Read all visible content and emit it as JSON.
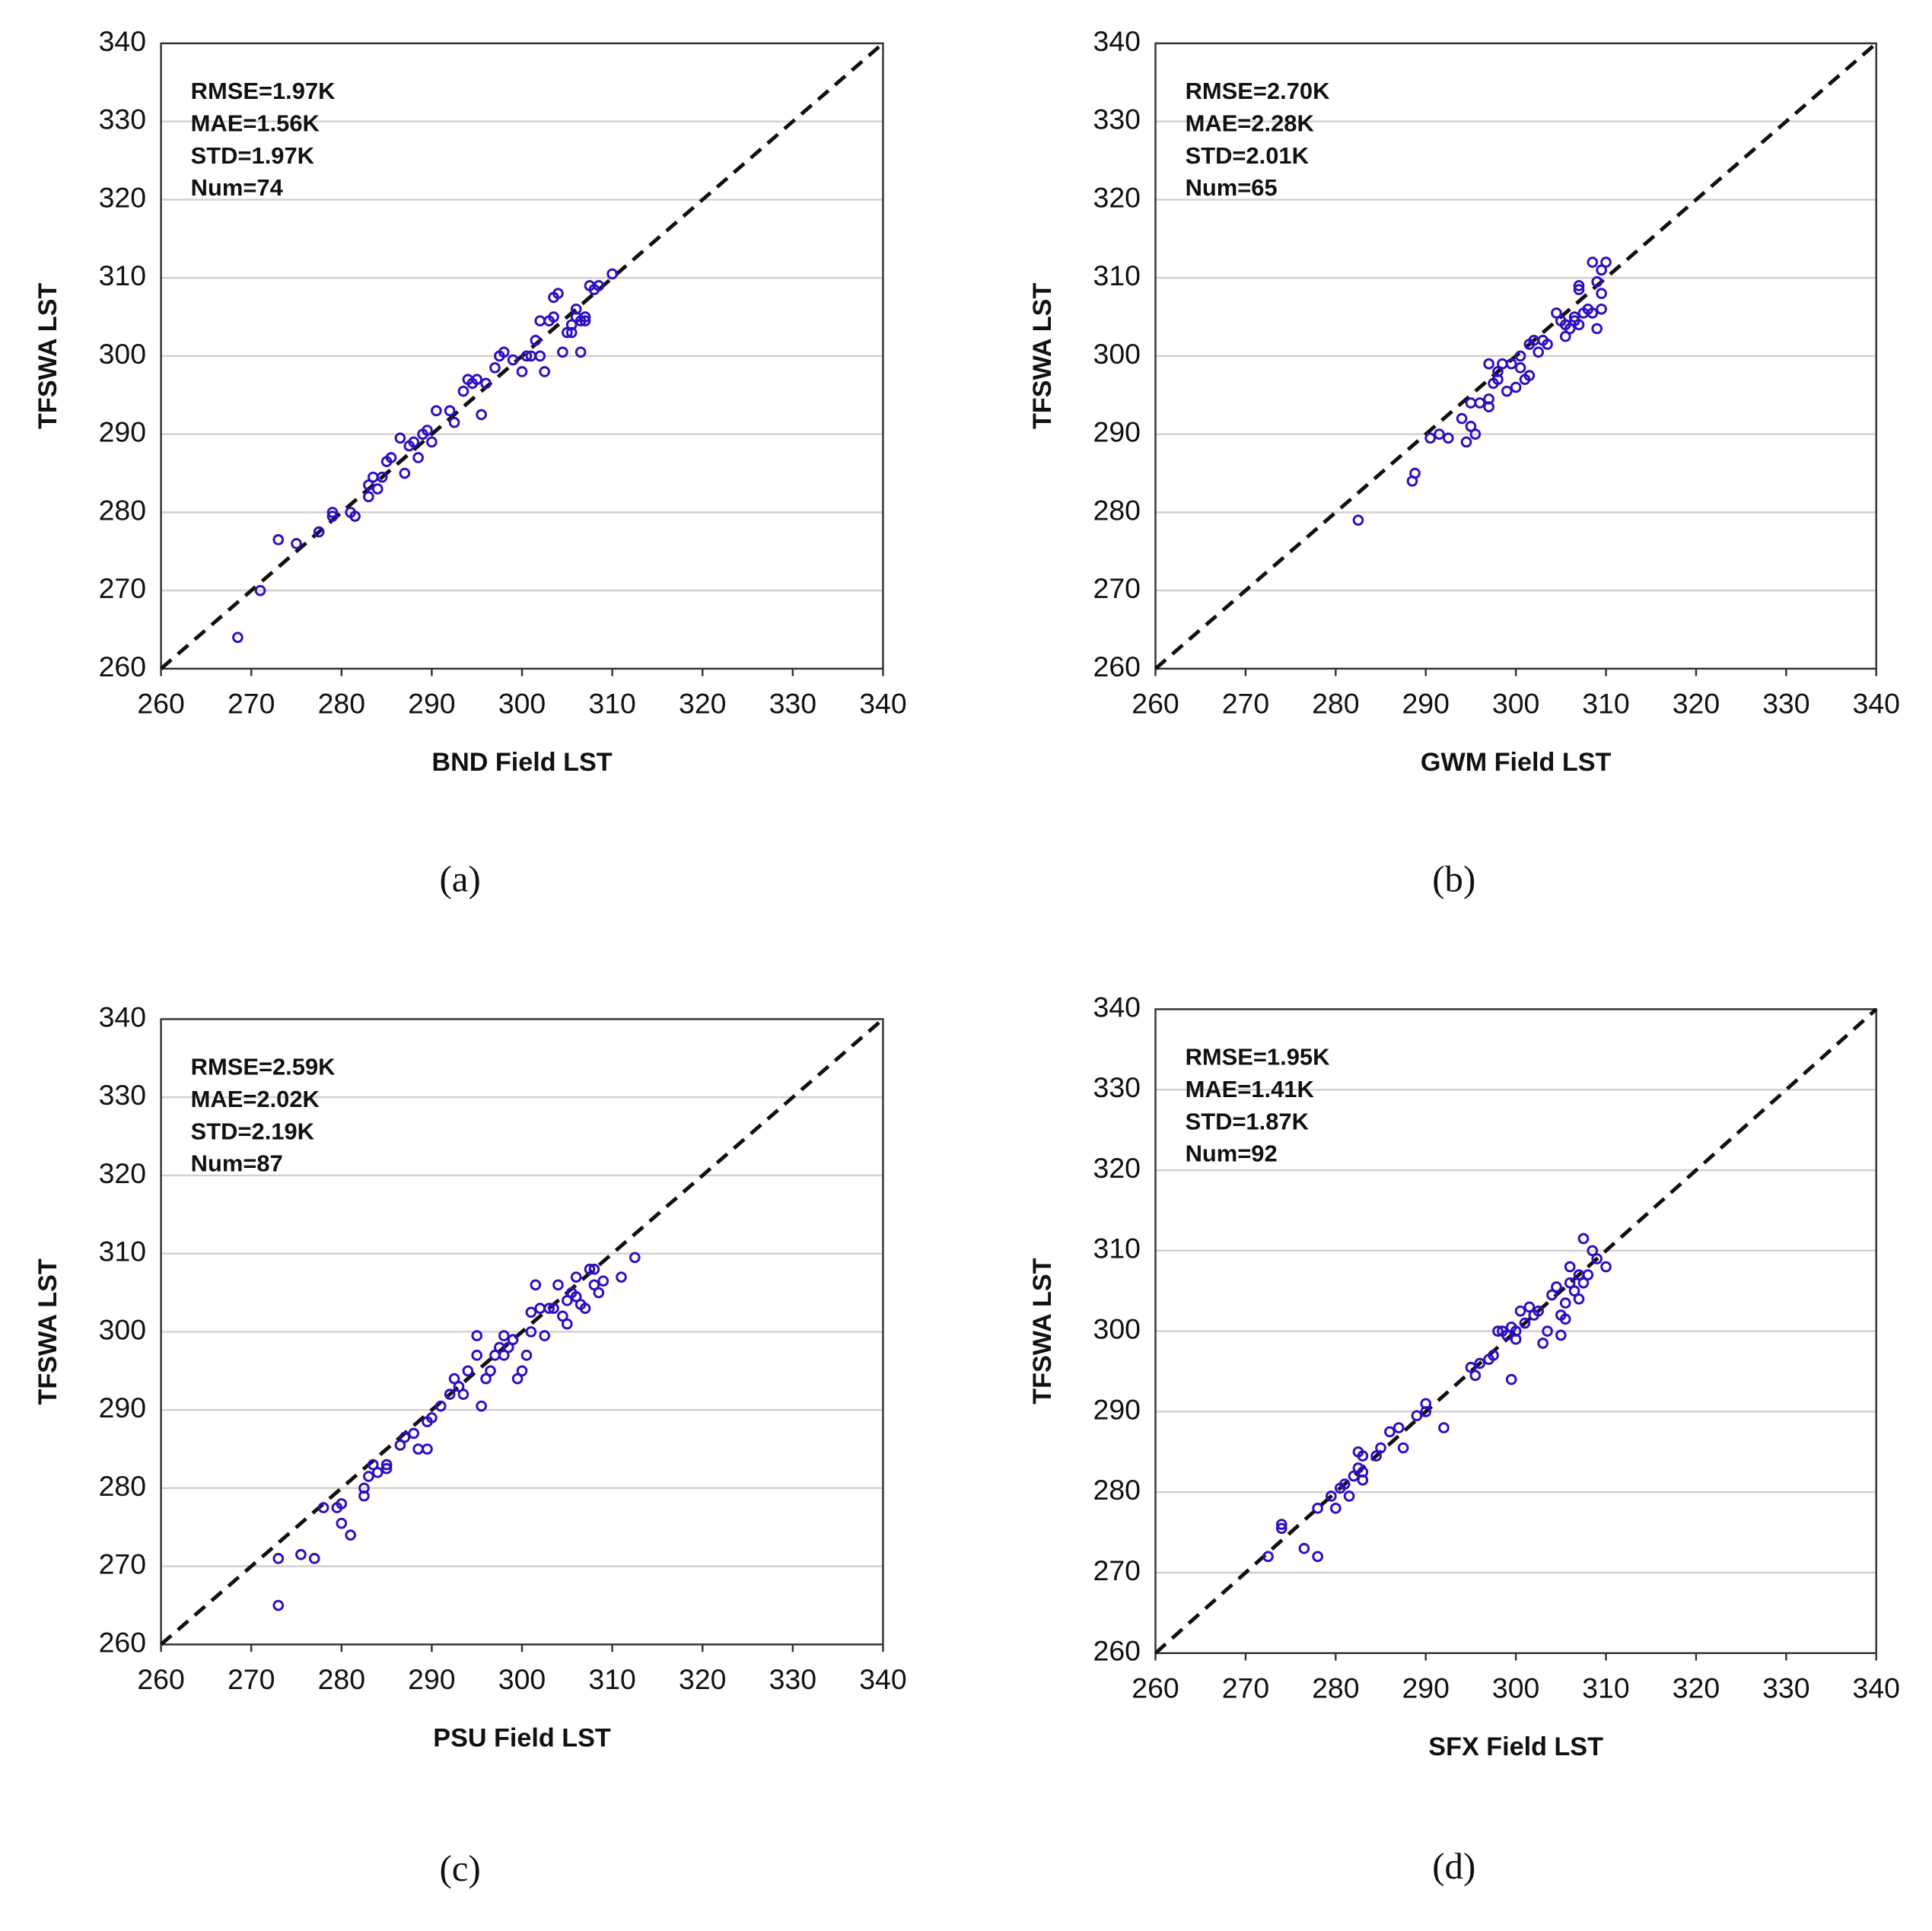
{
  "chart_data": [
    {
      "type": "scatter",
      "caption": "(a)",
      "x_label": "BND Field LST",
      "y_label": "TFSWA LST",
      "annotations": [
        "RMSE=1.97K",
        "MAE=1.56K",
        "STD=1.97K",
        "Num=74"
      ],
      "xlim": [
        260,
        340
      ],
      "ylim": [
        260,
        340
      ],
      "xticks": [
        260,
        270,
        280,
        290,
        300,
        310,
        320,
        330,
        340
      ],
      "yticks": [
        260,
        270,
        280,
        290,
        300,
        310,
        320,
        330,
        340
      ],
      "grid": "y",
      "identity_line": true,
      "color": "#2a10c0",
      "x": [
        268.5,
        271,
        273,
        275,
        277.5,
        279,
        279,
        281,
        281.5,
        283,
        283,
        283.5,
        284,
        284.5,
        285,
        285.5,
        286.5,
        287,
        287.5,
        288,
        288.5,
        289,
        289.5,
        290,
        290.5,
        292,
        292.5,
        293.5,
        294,
        294.5,
        295,
        295.5,
        296,
        297,
        297.5,
        298,
        299,
        300,
        300.5,
        301,
        301.5,
        302,
        302,
        302.5,
        303,
        303.5,
        303.5,
        304,
        304.5,
        305,
        305.5,
        305.5,
        306,
        306,
        306.5,
        306.5,
        307,
        307,
        307.5,
        308,
        308.5,
        310
      ],
      "values": [
        264,
        270,
        276.5,
        276,
        277.5,
        280,
        279.5,
        280,
        279.5,
        282,
        283.5,
        284.5,
        283,
        284.5,
        286.5,
        287,
        289.5,
        285,
        288.5,
        289,
        287,
        290,
        290.5,
        289,
        293,
        293,
        291.5,
        295.5,
        297,
        296.5,
        297,
        292.5,
        296.5,
        298.5,
        300,
        300.5,
        299.5,
        298,
        300,
        300,
        302,
        304.5,
        300,
        298,
        304.5,
        305,
        307.5,
        308,
        300.5,
        303,
        304,
        303,
        305,
        306,
        300.5,
        304.5,
        305,
        304.5,
        309,
        308.5,
        309,
        310.5
      ]
    },
    {
      "type": "scatter",
      "caption": "(b)",
      "x_label": "GWM Field LST",
      "y_label": "TFSWA LST",
      "annotations": [
        "RMSE=2.70K",
        "MAE=2.28K",
        "STD=2.01K",
        "Num=65"
      ],
      "xlim": [
        260,
        340
      ],
      "ylim": [
        260,
        340
      ],
      "xticks": [
        260,
        270,
        280,
        290,
        300,
        310,
        320,
        330,
        340
      ],
      "yticks": [
        260,
        270,
        280,
        290,
        300,
        310,
        320,
        330,
        340
      ],
      "grid": "y",
      "identity_line": true,
      "color": "#2a10c0",
      "x": [
        282.5,
        288.5,
        288.8,
        290.5,
        291.5,
        292.5,
        294,
        294.5,
        295,
        295,
        295.5,
        296,
        297,
        297,
        297,
        297.5,
        298,
        298,
        298.5,
        299,
        299.5,
        300,
        300.5,
        300.5,
        301,
        301.5,
        301.5,
        302,
        302.5,
        303,
        303.5,
        304.5,
        305,
        305.5,
        305.5,
        306,
        306.5,
        306.5,
        307,
        307,
        307.5,
        308,
        308.5,
        308.5,
        309,
        309,
        309.5,
        309.5,
        309.5,
        310,
        307
      ],
      "values": [
        279,
        284,
        285,
        289.5,
        290,
        289.5,
        292,
        289,
        291,
        294,
        290,
        294,
        293.5,
        294.5,
        299,
        296.5,
        297,
        298,
        299,
        295.5,
        299,
        296,
        298.5,
        300,
        297,
        297.5,
        301.5,
        302,
        300.5,
        302,
        301.5,
        305.5,
        304.5,
        302.5,
        304,
        303.5,
        304.5,
        305,
        308.5,
        309,
        305.5,
        306,
        312,
        305.5,
        309.5,
        303.5,
        306,
        308,
        311,
        312,
        304
      ]
    },
    {
      "type": "scatter",
      "caption": "(c)",
      "x_label": "PSU Field LST",
      "y_label": "TFSWA LST",
      "annotations": [
        "RMSE=2.59K",
        "MAE=2.02K",
        "STD=2.19K",
        "Num=87"
      ],
      "xlim": [
        260,
        340
      ],
      "ylim": [
        260,
        340
      ],
      "xticks": [
        260,
        270,
        280,
        290,
        300,
        310,
        320,
        330,
        340
      ],
      "yticks": [
        260,
        270,
        280,
        290,
        300,
        310,
        320,
        330,
        340
      ],
      "grid": "y",
      "identity_line": true,
      "color": "#2a10c0",
      "x": [
        273,
        273,
        275.5,
        277,
        278,
        279.5,
        280,
        280,
        281,
        282.5,
        282.5,
        283,
        283.5,
        284,
        285,
        285,
        286.5,
        287,
        288,
        288.5,
        289.5,
        289.5,
        290,
        291,
        292,
        292.5,
        293,
        293.5,
        294,
        295,
        295,
        295.5,
        296,
        296.5,
        297,
        297.5,
        298,
        298,
        298.5,
        299,
        299.5,
        300,
        300.5,
        301,
        301,
        301.5,
        302,
        302.5,
        303.5,
        304,
        304.5,
        305,
        305,
        305.5,
        306,
        306,
        306.5,
        307,
        307.5,
        308,
        308.5,
        309,
        311,
        312.5,
        308,
        303
      ],
      "values": [
        265,
        271,
        271.5,
        271,
        277.5,
        277.5,
        278,
        275.5,
        274,
        279,
        280,
        281.5,
        283,
        282,
        282.5,
        283,
        285.5,
        286.5,
        287,
        285,
        285,
        288.5,
        289,
        290.5,
        292,
        294,
        293,
        292,
        295,
        299.5,
        297,
        290.5,
        294,
        295,
        297,
        298,
        299.5,
        297,
        298,
        299,
        294,
        295,
        297,
        300,
        302.5,
        306,
        303,
        299.5,
        303,
        306,
        302,
        304,
        301,
        305,
        304.5,
        307,
        303.5,
        303,
        308,
        306,
        305,
        306.5,
        307,
        309.5,
        308,
        303
      ]
    },
    {
      "type": "scatter",
      "caption": "(d)",
      "x_label": "SFX Field LST",
      "y_label": "TFSWA LST",
      "annotations": [
        "RMSE=1.95K",
        "MAE=1.41K",
        "STD=1.87K",
        "Num=92"
      ],
      "xlim": [
        260,
        340
      ],
      "ylim": [
        260,
        340
      ],
      "xticks": [
        260,
        270,
        280,
        290,
        300,
        310,
        320,
        330,
        340
      ],
      "yticks": [
        260,
        270,
        280,
        290,
        300,
        310,
        320,
        330,
        340
      ],
      "grid": "y",
      "identity_line": true,
      "color": "#2a10c0",
      "x": [
        272.5,
        274,
        274,
        276.5,
        278,
        278,
        279.5,
        280,
        280.5,
        281,
        281.5,
        282,
        282.5,
        282.5,
        283,
        283,
        283,
        284.5,
        285,
        286,
        287,
        287.5,
        289,
        290,
        290,
        292,
        295,
        295.5,
        296,
        297,
        297.5,
        298,
        298.5,
        299,
        299.5,
        299.5,
        300,
        300,
        300.5,
        301,
        301.5,
        302,
        302.5,
        303,
        303.5,
        304,
        304.5,
        305,
        305,
        305.5,
        305.5,
        306,
        306,
        306.5,
        307,
        307,
        307.5,
        307.5,
        308,
        308.5,
        309,
        310
      ],
      "values": [
        272,
        275.5,
        276,
        273,
        272,
        278,
        279.5,
        278,
        280.5,
        281,
        279.5,
        282,
        283,
        285,
        281.5,
        282.5,
        284.5,
        284.5,
        285.5,
        287.5,
        288,
        285.5,
        289.5,
        290,
        291,
        288,
        295.5,
        294.5,
        296,
        296.5,
        297,
        300,
        300,
        299.5,
        300.5,
        294,
        299,
        300,
        302.5,
        301,
        303,
        302,
        302.5,
        298.5,
        300,
        304.5,
        305.5,
        299.5,
        302,
        303.5,
        301.5,
        306,
        308,
        305,
        307,
        304,
        306,
        311.5,
        307,
        310,
        309,
        308
      ]
    }
  ]
}
